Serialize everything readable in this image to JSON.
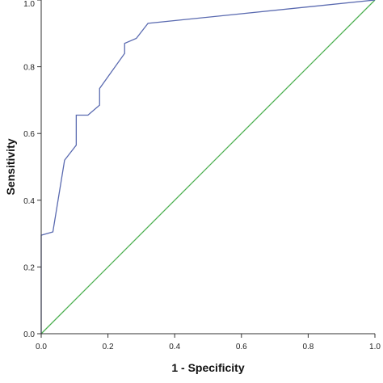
{
  "chart_data": {
    "type": "line",
    "title": "",
    "xlabel": "1 - Specificity",
    "ylabel": "Sensitivity",
    "xlim": [
      0,
      1
    ],
    "ylim": [
      0,
      1
    ],
    "grid": false,
    "x_ticks": [
      "0.0",
      "0.2",
      "0.4",
      "0.6",
      "0.8",
      "1.0"
    ],
    "y_ticks": [
      "0.0",
      "0.2",
      "0.4",
      "0.6",
      "0.8",
      "1.0"
    ],
    "series": [
      {
        "color": "#5a6ab0",
        "points": [
          [
            0.0,
            0.0
          ],
          [
            0.0,
            0.295
          ],
          [
            0.035,
            0.305
          ],
          [
            0.07,
            0.52
          ],
          [
            0.105,
            0.565
          ],
          [
            0.105,
            0.655
          ],
          [
            0.14,
            0.655
          ],
          [
            0.175,
            0.685
          ],
          [
            0.175,
            0.735
          ],
          [
            0.25,
            0.84
          ],
          [
            0.25,
            0.87
          ],
          [
            0.285,
            0.885
          ],
          [
            0.32,
            0.93
          ],
          [
            1.0,
            1.0
          ]
        ]
      },
      {
        "color": "#4caf50",
        "points": [
          [
            0.0,
            0.0
          ],
          [
            1.0,
            1.0
          ]
        ]
      }
    ]
  }
}
